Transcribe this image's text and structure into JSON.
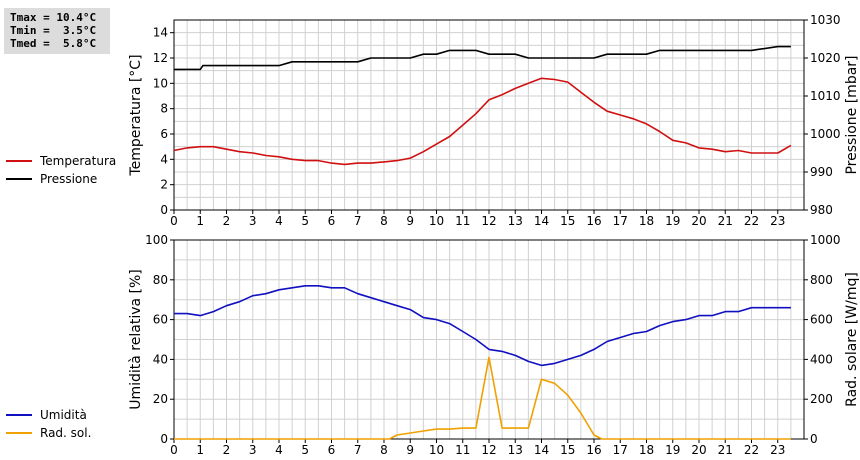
{
  "stats": {
    "tmax": "Tmax = 10.4°C",
    "tmin": "Tmin =  3.5°C",
    "tmed": "Tmed =  5.8°C"
  },
  "legend_top": [
    {
      "label": "Temperatura",
      "color": "#d01010"
    },
    {
      "label": "Pressione",
      "color": "#000000"
    }
  ],
  "legend_bottom": [
    {
      "label": "Umidità",
      "color": "#1010c0"
    },
    {
      "label": "Rad. sol.",
      "color": "#f0a000"
    }
  ],
  "chart_data": [
    {
      "type": "line",
      "xlim": [
        0,
        24
      ],
      "x_ticks": [
        0,
        1,
        2,
        3,
        4,
        5,
        6,
        7,
        8,
        9,
        10,
        11,
        12,
        13,
        14,
        15,
        16,
        17,
        18,
        19,
        20,
        21,
        22,
        23
      ],
      "grid": true,
      "y_left": {
        "label": "Temperatura [°C]",
        "range": [
          0,
          15
        ],
        "ticks": [
          0,
          2,
          4,
          6,
          8,
          10,
          12,
          14
        ]
      },
      "y_right": {
        "label": "Pressione [mbar]",
        "range": [
          980,
          1030
        ],
        "ticks": [
          980,
          990,
          1000,
          1010,
          1020,
          1030
        ]
      },
      "series": [
        {
          "name": "Temperatura",
          "axis": "left",
          "color": "#d01010",
          "x": [
            0,
            0.5,
            1,
            1.5,
            2,
            2.5,
            3,
            3.5,
            4,
            4.5,
            5,
            5.5,
            6,
            6.5,
            7,
            7.5,
            8,
            8.5,
            9,
            9.5,
            10,
            10.5,
            11,
            11.5,
            12,
            12.5,
            13,
            13.5,
            14,
            14.5,
            15,
            15.5,
            16,
            16.5,
            17,
            17.5,
            18,
            18.5,
            19,
            19.5,
            20,
            20.5,
            21,
            21.5,
            22,
            22.5,
            23,
            23.5
          ],
          "y": [
            4.7,
            4.9,
            5.0,
            5.0,
            4.8,
            4.6,
            4.5,
            4.3,
            4.2,
            4.0,
            3.9,
            3.9,
            3.7,
            3.6,
            3.7,
            3.7,
            3.8,
            3.9,
            4.1,
            4.6,
            5.2,
            5.8,
            6.7,
            7.6,
            8.7,
            9.1,
            9.6,
            10.0,
            10.4,
            10.3,
            10.1,
            9.3,
            8.5,
            7.8,
            7.5,
            7.2,
            6.8,
            6.2,
            5.5,
            5.3,
            4.9,
            4.8,
            4.6,
            4.7,
            4.5,
            4.5,
            4.5,
            5.1
          ]
        },
        {
          "name": "Pressione",
          "axis": "right",
          "color": "#000000",
          "x": [
            0,
            1,
            1.1,
            2,
            3,
            4,
            4.5,
            5,
            6,
            7,
            7.5,
            8,
            9,
            9.5,
            10,
            10.5,
            11,
            11.5,
            12,
            13,
            13.5,
            14,
            15,
            16,
            16.5,
            17,
            18,
            18.5,
            19,
            20,
            21,
            22,
            23,
            23.5
          ],
          "y": [
            1017,
            1017,
            1018,
            1018,
            1018,
            1018,
            1019,
            1019,
            1019,
            1019,
            1020,
            1020,
            1020,
            1021,
            1021,
            1022,
            1022,
            1022,
            1021,
            1021,
            1020,
            1020,
            1020,
            1020,
            1021,
            1021,
            1021,
            1022,
            1022,
            1022,
            1022,
            1022,
            1023,
            1023
          ]
        }
      ]
    },
    {
      "type": "line",
      "xlim": [
        0,
        24
      ],
      "x_ticks": [
        0,
        1,
        2,
        3,
        4,
        5,
        6,
        7,
        8,
        9,
        10,
        11,
        12,
        13,
        14,
        15,
        16,
        17,
        18,
        19,
        20,
        21,
        22,
        23
      ],
      "grid": true,
      "y_left": {
        "label": "Umidità relativa [%]",
        "range": [
          0,
          100
        ],
        "ticks": [
          0,
          20,
          40,
          60,
          80,
          100
        ]
      },
      "y_right": {
        "label": "Rad. solare [W/mq]",
        "range": [
          0,
          1000
        ],
        "ticks": [
          0,
          200,
          400,
          600,
          800,
          1000
        ]
      },
      "series": [
        {
          "name": "Umidità",
          "axis": "left",
          "color": "#1010c0",
          "x": [
            0,
            0.5,
            1,
            1.5,
            2,
            2.5,
            3,
            3.5,
            4,
            4.5,
            5,
            5.5,
            6,
            6.5,
            7,
            7.5,
            8,
            8.5,
            9,
            9.5,
            10,
            10.5,
            11,
            11.5,
            12,
            12.5,
            13,
            13.5,
            14,
            14.5,
            15,
            15.5,
            16,
            16.5,
            17,
            17.5,
            18,
            18.5,
            19,
            19.5,
            20,
            20.5,
            21,
            21.5,
            22,
            22.5,
            23,
            23.5
          ],
          "y": [
            63,
            63,
            62,
            64,
            67,
            69,
            72,
            73,
            75,
            76,
            77,
            77,
            76,
            76,
            73,
            71,
            69,
            67,
            65,
            61,
            60,
            58,
            54,
            50,
            45,
            44,
            42,
            39,
            37,
            38,
            40,
            42,
            45,
            49,
            51,
            53,
            54,
            57,
            59,
            60,
            62,
            62,
            64,
            64,
            66,
            66,
            66,
            66
          ]
        },
        {
          "name": "Rad. sol.",
          "axis": "right",
          "color": "#f0a000",
          "x": [
            0,
            1,
            2,
            3,
            4,
            5,
            6,
            7,
            8,
            8.2,
            8.5,
            9,
            9.5,
            10,
            10.5,
            11,
            11.5,
            12,
            12.5,
            13,
            13.5,
            14,
            14.5,
            15,
            15.5,
            16,
            16.3,
            17,
            18,
            19,
            20,
            21,
            22,
            23,
            23.5
          ],
          "y": [
            0,
            0,
            0,
            0,
            0,
            0,
            0,
            0,
            0,
            0,
            20,
            30,
            40,
            50,
            50,
            55,
            55,
            410,
            55,
            55,
            55,
            300,
            280,
            220,
            130,
            20,
            0,
            0,
            0,
            0,
            0,
            0,
            0,
            0,
            0
          ]
        }
      ]
    }
  ]
}
